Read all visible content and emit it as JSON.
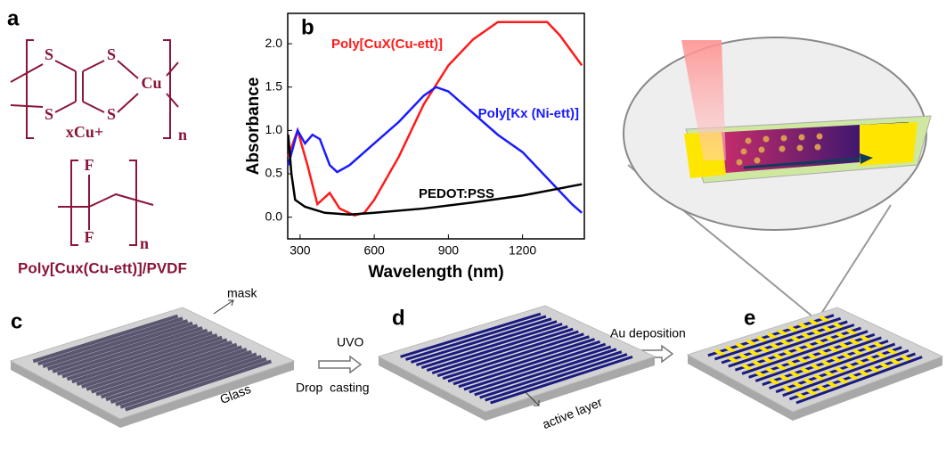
{
  "panel_labels": [
    "a",
    "b",
    "c",
    "d",
    "e"
  ],
  "structure": {
    "atoms": [
      "S",
      "S",
      "S",
      "S",
      "Cu"
    ],
    "counterion": "xCu+",
    "repeat": "n",
    "pvdf_atoms": [
      "F",
      "F"
    ],
    "pvdf_repeat": "n",
    "caption": "Poly[Cux(Cu-ett)]/PVDF"
  },
  "process": {
    "mask": "mask",
    "glass": "Glass",
    "step1_top": "UVO",
    "step1_bottom": "Drop  casting",
    "active": "active layer",
    "step2": "Au deposition"
  },
  "chart_data": {
    "type": "line",
    "x_label": "Wavelength (nm)",
    "y_label": "Absorbance",
    "xlim": [
      250,
      1450
    ],
    "ylim": [
      -0.25,
      2.35
    ],
    "xticks": [
      300,
      600,
      900,
      1200
    ],
    "yticks": [
      {
        "value": 0,
        "label": "0.0"
      },
      {
        "value": 0.5,
        "label": "0.5"
      },
      {
        "value": 1,
        "label": "1.0"
      },
      {
        "value": 1.5,
        "label": "1.5"
      },
      {
        "value": 2,
        "label": "2.0"
      }
    ],
    "series": [
      {
        "name": "Poly[CuX(Cu-ett)]",
        "color": "#ff1a1a",
        "x": [
          252,
          290,
          330,
          370,
          420,
          460,
          520,
          560,
          600,
          700,
          800,
          900,
          1000,
          1100,
          1200,
          1300,
          1350,
          1440
        ],
        "values": [
          0.7,
          1.0,
          0.6,
          0.15,
          0.28,
          0.1,
          0.02,
          0.05,
          0.2,
          0.7,
          1.3,
          1.75,
          2.05,
          2.25,
          2.25,
          2.25,
          2.1,
          1.75
        ]
      },
      {
        "name": "Poly[Kx (Ni-ett)]",
        "color": "#1a1aff",
        "x": [
          252,
          290,
          320,
          350,
          380,
          420,
          450,
          500,
          600,
          700,
          800,
          850,
          900,
          1000,
          1100,
          1200,
          1300,
          1400,
          1440
        ],
        "values": [
          0.6,
          1.0,
          0.85,
          0.95,
          0.9,
          0.6,
          0.52,
          0.6,
          0.85,
          1.1,
          1.4,
          1.5,
          1.45,
          1.2,
          0.95,
          0.75,
          0.45,
          0.15,
          0.05
        ]
      },
      {
        "name": "PEDOT:PSS",
        "color": "#000000",
        "x": [
          252,
          265,
          280,
          320,
          400,
          500,
          600,
          800,
          1000,
          1200,
          1440
        ],
        "values": [
          0.95,
          0.5,
          0.2,
          0.12,
          0.05,
          0.03,
          0.05,
          0.1,
          0.17,
          0.25,
          0.38
        ]
      }
    ]
  }
}
